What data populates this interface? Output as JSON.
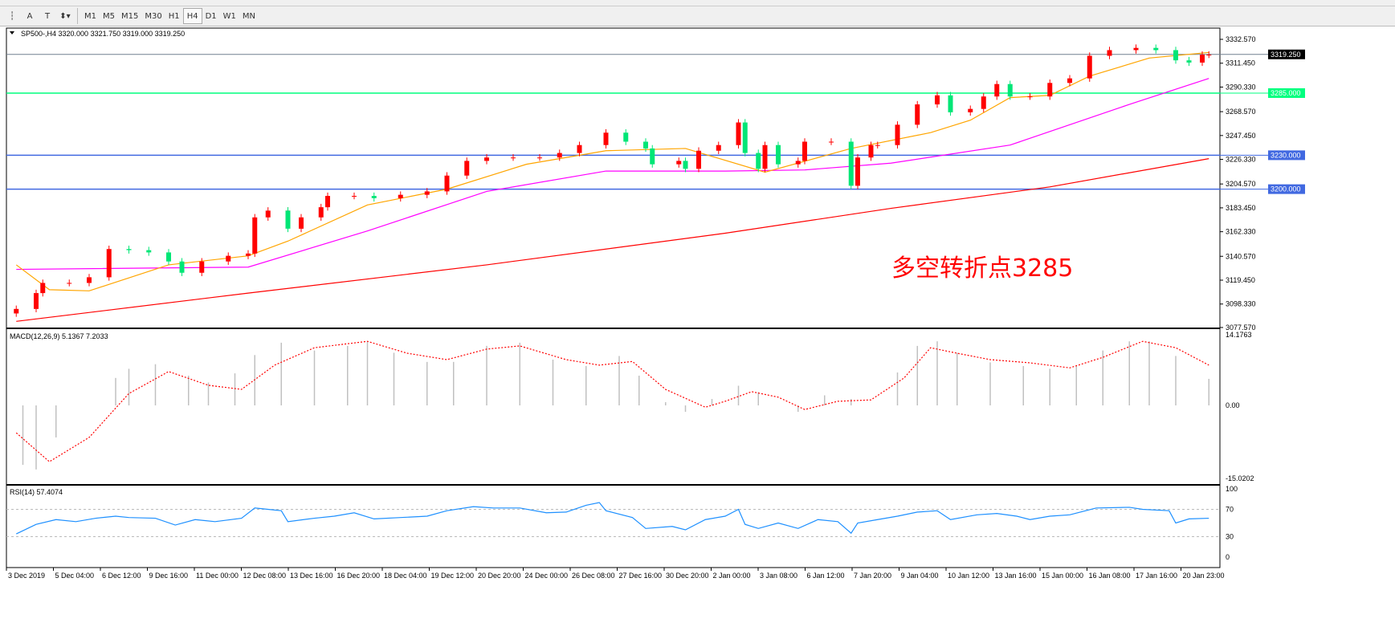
{
  "toolbar": {
    "tools": [
      "period-separator",
      "A",
      "T",
      "arrows"
    ],
    "timeframes": [
      "M1",
      "M5",
      "M15",
      "M30",
      "H1",
      "H4",
      "D1",
      "W1",
      "MN"
    ],
    "active_timeframe": "H4"
  },
  "chart_data": [
    {
      "type": "candlestick",
      "title": "SP500-,H4  3320.000 3321.750 3319.000 3319.250",
      "ylim": [
        3077.57,
        3340
      ],
      "y_ticks": [
        "3332.570",
        "3311.450",
        "3290.330",
        "3268.570",
        "3247.450",
        "3226.330",
        "3204.570",
        "3183.450",
        "3162.330",
        "3140.570",
        "3119.450",
        "3098.330",
        "3077.570"
      ],
      "current_price": "3319.250",
      "levels": [
        {
          "value": 3285,
          "label": "3285.000",
          "color": "#00ff7f"
        },
        {
          "value": 3230,
          "label": "3230.000",
          "color": "#4169e1"
        },
        {
          "value": 3200,
          "label": "3200.000",
          "color": "#4169e1"
        }
      ],
      "colors": {
        "up": "#ff0000",
        "down": "#00e676",
        "ma_fast": "#ffa500",
        "ma_mid": "#ff00ff",
        "ma_slow": "#ff0000"
      },
      "closes": [
        [
          1,
          3094
        ],
        [
          4,
          3108
        ],
        [
          5,
          3117
        ],
        [
          9,
          3117
        ],
        [
          12,
          3122
        ],
        [
          15,
          3147
        ],
        [
          18,
          3146
        ],
        [
          21,
          3144
        ],
        [
          24,
          3136
        ],
        [
          26,
          3126
        ],
        [
          29,
          3136
        ],
        [
          33,
          3141
        ],
        [
          36,
          3143
        ],
        [
          37,
          3175
        ],
        [
          39,
          3181
        ],
        [
          42,
          3181
        ],
        [
          42,
          3165
        ],
        [
          44,
          3175
        ],
        [
          47,
          3184
        ],
        [
          48,
          3194
        ],
        [
          52,
          3194
        ],
        [
          55,
          3192
        ],
        [
          59,
          3195
        ],
        [
          63,
          3198
        ],
        [
          66,
          3212
        ],
        [
          69,
          3225
        ],
        [
          72,
          3228
        ],
        [
          76,
          3228
        ],
        [
          80,
          3228
        ],
        [
          83,
          3232
        ],
        [
          86,
          3239
        ],
        [
          90,
          3250
        ],
        [
          93,
          3242
        ],
        [
          96,
          3236
        ],
        [
          97,
          3222
        ],
        [
          101,
          3225
        ],
        [
          102,
          3218
        ],
        [
          104,
          3234
        ],
        [
          107,
          3239
        ],
        [
          110,
          3259
        ],
        [
          111,
          3232
        ],
        [
          113,
          3218
        ],
        [
          114,
          3239
        ],
        [
          116,
          3222
        ],
        [
          119,
          3225
        ],
        [
          120,
          3242
        ],
        [
          124,
          3242
        ],
        [
          127,
          3203
        ],
        [
          128,
          3228
        ],
        [
          130,
          3239
        ],
        [
          131,
          3239
        ],
        [
          134,
          3257
        ],
        [
          137,
          3275
        ],
        [
          140,
          3283
        ],
        [
          142,
          3268
        ],
        [
          145,
          3271
        ],
        [
          147,
          3282
        ],
        [
          149,
          3293
        ],
        [
          151,
          3282
        ],
        [
          154,
          3282
        ],
        [
          157,
          3294
        ],
        [
          160,
          3298
        ],
        [
          163,
          3318
        ],
        [
          166,
          3323
        ],
        [
          170,
          3325
        ],
        [
          173,
          3323
        ],
        [
          176,
          3314
        ],
        [
          178,
          3312
        ],
        [
          180,
          3319
        ],
        [
          181,
          3319
        ]
      ],
      "ma_fast": [
        [
          1,
          3133
        ],
        [
          6,
          3111
        ],
        [
          12,
          3110
        ],
        [
          24,
          3133
        ],
        [
          36,
          3141
        ],
        [
          42,
          3154
        ],
        [
          54,
          3186
        ],
        [
          66,
          3200
        ],
        [
          78,
          3222
        ],
        [
          90,
          3234
        ],
        [
          102,
          3236
        ],
        [
          114,
          3215
        ],
        [
          127,
          3236
        ],
        [
          139,
          3250
        ],
        [
          145,
          3261
        ],
        [
          151,
          3281
        ],
        [
          157,
          3283
        ],
        [
          163,
          3300
        ],
        [
          172,
          3316
        ],
        [
          181,
          3321
        ]
      ],
      "ma_mid": [
        [
          1,
          3129
        ],
        [
          36,
          3131
        ],
        [
          54,
          3163
        ],
        [
          72,
          3198
        ],
        [
          90,
          3216
        ],
        [
          108,
          3216
        ],
        [
          120,
          3217
        ],
        [
          133,
          3223
        ],
        [
          151,
          3239
        ],
        [
          169,
          3275
        ],
        [
          181,
          3298
        ]
      ],
      "ma_slow": [
        [
          1,
          3083
        ],
        [
          36,
          3108
        ],
        [
          72,
          3133
        ],
        [
          108,
          3161
        ],
        [
          133,
          3183
        ],
        [
          157,
          3202
        ],
        [
          181,
          3227
        ]
      ],
      "annotation": "多空转折点3285"
    },
    {
      "type": "bar+line",
      "title": "MACD(12,26,9) 5.1367 7.2033",
      "y_ticks": [
        "14.1763",
        "0.00",
        "-15.0202"
      ],
      "ylim": [
        -15.0202,
        14.1763
      ],
      "histogram": [
        [
          2,
          -13
        ],
        [
          4,
          -14
        ],
        [
          7,
          -7
        ],
        [
          12,
          0
        ],
        [
          16,
          6
        ],
        [
          18,
          8
        ],
        [
          22,
          9
        ],
        [
          27,
          6.5
        ],
        [
          30,
          5
        ],
        [
          34,
          7
        ],
        [
          37,
          11
        ],
        [
          41,
          13.7
        ],
        [
          46,
          12
        ],
        [
          51,
          13
        ],
        [
          54,
          14
        ],
        [
          58,
          11.5
        ],
        [
          63,
          9.5
        ],
        [
          67,
          9.5
        ],
        [
          72,
          13
        ],
        [
          77,
          13.7
        ],
        [
          82,
          10
        ],
        [
          87,
          8.6
        ],
        [
          92,
          10.8
        ],
        [
          95,
          6.5
        ],
        [
          99,
          0.7
        ],
        [
          102,
          -1.4
        ],
        [
          106,
          1.4
        ],
        [
          110,
          4.3
        ],
        [
          113,
          2.9
        ],
        [
          117,
          0
        ],
        [
          119,
          -1.4
        ],
        [
          123,
          2.2
        ],
        [
          127,
          1.4
        ],
        [
          130,
          0
        ],
        [
          134,
          7.2
        ],
        [
          137,
          13
        ],
        [
          140,
          14
        ],
        [
          143,
          11.5
        ],
        [
          148,
          9.4
        ],
        [
          153,
          8.6
        ],
        [
          157,
          8
        ],
        [
          161,
          8.6
        ],
        [
          165,
          12
        ],
        [
          169,
          14
        ],
        [
          172,
          14
        ],
        [
          176,
          10.8
        ],
        [
          181,
          5.8
        ]
      ],
      "signal": [
        [
          1,
          -6
        ],
        [
          6,
          -12.3
        ],
        [
          12,
          -7
        ],
        [
          18,
          2.6
        ],
        [
          24,
          7.4
        ],
        [
          30,
          4.4
        ],
        [
          35,
          3.5
        ],
        [
          40,
          8.8
        ],
        [
          46,
          12.6
        ],
        [
          54,
          14
        ],
        [
          60,
          11.4
        ],
        [
          66,
          10
        ],
        [
          72,
          12.3
        ],
        [
          77,
          13
        ],
        [
          84,
          10
        ],
        [
          89,
          8.8
        ],
        [
          94,
          9.6
        ],
        [
          99,
          3.5
        ],
        [
          105,
          -0.4
        ],
        [
          108,
          0.9
        ],
        [
          112,
          3
        ],
        [
          116,
          1.8
        ],
        [
          120,
          -0.9
        ],
        [
          125,
          0.9
        ],
        [
          130,
          1.2
        ],
        [
          135,
          6
        ],
        [
          139,
          12.6
        ],
        [
          143,
          11.4
        ],
        [
          148,
          10
        ],
        [
          154,
          9.3
        ],
        [
          160,
          8.2
        ],
        [
          165,
          10.5
        ],
        [
          171,
          14
        ],
        [
          176,
          12.6
        ],
        [
          181,
          8.8
        ]
      ],
      "colors": {
        "histogram": "#c0c0c0",
        "signal": "#ff0000"
      }
    },
    {
      "type": "line",
      "title": "RSI(14) 57.4074",
      "y_ticks": [
        "100",
        "70",
        "30",
        "0"
      ],
      "ylim": [
        0,
        100
      ],
      "levels": [
        70,
        30
      ],
      "values": [
        [
          1,
          34
        ],
        [
          4,
          48
        ],
        [
          7,
          55
        ],
        [
          10,
          52
        ],
        [
          13,
          57
        ],
        [
          16,
          60
        ],
        [
          18,
          58
        ],
        [
          22,
          57
        ],
        [
          25,
          47
        ],
        [
          28,
          55
        ],
        [
          31,
          52
        ],
        [
          35,
          57
        ],
        [
          37,
          72
        ],
        [
          39,
          70
        ],
        [
          41,
          68
        ],
        [
          42,
          52
        ],
        [
          46,
          57
        ],
        [
          49,
          60
        ],
        [
          52,
          65
        ],
        [
          55,
          56
        ],
        [
          59,
          58
        ],
        [
          63,
          60
        ],
        [
          66,
          68
        ],
        [
          70,
          74
        ],
        [
          73,
          72
        ],
        [
          77,
          72
        ],
        [
          81,
          65
        ],
        [
          84,
          66
        ],
        [
          87,
          76
        ],
        [
          89,
          80
        ],
        [
          90,
          68
        ],
        [
          94,
          58
        ],
        [
          96,
          42
        ],
        [
          100,
          45
        ],
        [
          102,
          40
        ],
        [
          105,
          55
        ],
        [
          108,
          60
        ],
        [
          110,
          70
        ],
        [
          111,
          48
        ],
        [
          113,
          42
        ],
        [
          116,
          50
        ],
        [
          119,
          42
        ],
        [
          122,
          55
        ],
        [
          125,
          52
        ],
        [
          127,
          35
        ],
        [
          128,
          50
        ],
        [
          131,
          55
        ],
        [
          134,
          60
        ],
        [
          137,
          66
        ],
        [
          140,
          68
        ],
        [
          142,
          55
        ],
        [
          146,
          62
        ],
        [
          149,
          64
        ],
        [
          152,
          60
        ],
        [
          154,
          55
        ],
        [
          157,
          60
        ],
        [
          160,
          62
        ],
        [
          164,
          72
        ],
        [
          169,
          73
        ],
        [
          171,
          70
        ],
        [
          175,
          68
        ],
        [
          176,
          50
        ],
        [
          178,
          56
        ],
        [
          181,
          57
        ]
      ],
      "color": "#1e90ff"
    }
  ],
  "time_axis": [
    "3 Dec 2019",
    "5 Dec 04:00",
    "6 Dec 12:00",
    "9 Dec 16:00",
    "11 Dec 00:00",
    "12 Dec 08:00",
    "13 Dec 16:00",
    "16 Dec 20:00",
    "18 Dec 04:00",
    "19 Dec 12:00",
    "20 Dec 20:00",
    "24 Dec 00:00",
    "26 Dec 08:00",
    "27 Dec 16:00",
    "30 Dec 20:00",
    "2 Jan 00:00",
    "3 Jan 08:00",
    "6 Jan 12:00",
    "7 Jan 20:00",
    "9 Jan 04:00",
    "10 Jan 12:00",
    "13 Jan 16:00",
    "15 Jan 00:00",
    "16 Jan 08:00",
    "17 Jan 16:00",
    "20 Jan 23:00"
  ]
}
